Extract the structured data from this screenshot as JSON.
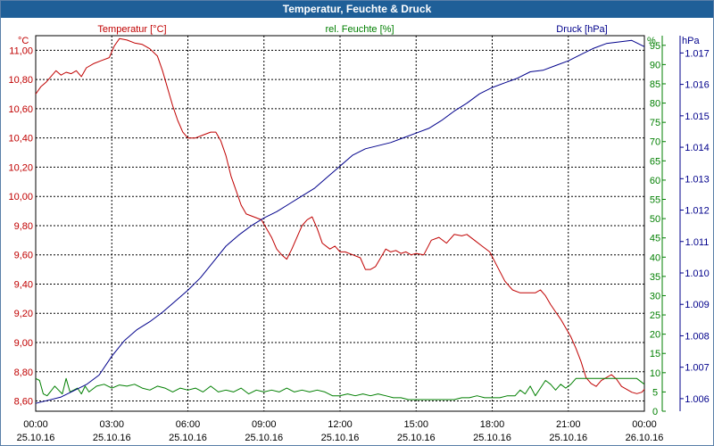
{
  "title": "Temperatur, Feuchte & Druck",
  "chart_data": {
    "type": "line",
    "title": "Temperatur, Feuchte & Druck",
    "x_range_hours": [
      0,
      24
    ],
    "x_ticks": [
      {
        "h": 0,
        "time": "00:00",
        "date": "25.10.16"
      },
      {
        "h": 3,
        "time": "03:00",
        "date": "25.10.16"
      },
      {
        "h": 6,
        "time": "06:00",
        "date": "25.10.16"
      },
      {
        "h": 9,
        "time": "09:00",
        "date": "25.10.16"
      },
      {
        "h": 12,
        "time": "12:00",
        "date": "25.10.16"
      },
      {
        "h": 15,
        "time": "15:00",
        "date": "25.10.16"
      },
      {
        "h": 18,
        "time": "18:00",
        "date": "25.10.16"
      },
      {
        "h": 21,
        "time": "21:00",
        "date": "25.10.16"
      },
      {
        "h": 24,
        "time": "00:00",
        "date": "26.10.16"
      }
    ],
    "axes": {
      "temperature": {
        "label": "Temperatur [°C]",
        "unit": "°C",
        "range": [
          8.53,
          11.1
        ],
        "ticks": [
          "8,60",
          "8,80",
          "9,00",
          "9,20",
          "9,40",
          "9,60",
          "9,80",
          "10,00",
          "10,20",
          "10,40",
          "10,60",
          "10,80",
          "11,00"
        ],
        "tick_values": [
          8.6,
          8.8,
          9.0,
          9.2,
          9.4,
          9.6,
          9.8,
          10.0,
          10.2,
          10.4,
          10.6,
          10.8,
          11.0
        ],
        "color": "#c00000"
      },
      "humidity": {
        "label": "rel. Feuchte [%]",
        "unit": "%",
        "range": [
          0,
          97.5
        ],
        "ticks": [
          "0",
          "5",
          "10",
          "15",
          "20",
          "25",
          "30",
          "35",
          "40",
          "45",
          "50",
          "55",
          "60",
          "65",
          "70",
          "75",
          "80",
          "85",
          "90",
          "95"
        ],
        "tick_values": [
          0,
          5,
          10,
          15,
          20,
          25,
          30,
          35,
          40,
          45,
          50,
          55,
          60,
          65,
          70,
          75,
          80,
          85,
          90,
          95
        ],
        "color": "#007f00"
      },
      "pressure": {
        "label": "Druck [hPa]",
        "unit": "hPa",
        "range": [
          1005.6,
          1017.55
        ],
        "ticks": [
          "1.006",
          "1.007",
          "1.008",
          "1.009",
          "1.010",
          "1.011",
          "1.012",
          "1.013",
          "1.014",
          "1.015",
          "1.016",
          "1.017"
        ],
        "tick_values": [
          1006,
          1007,
          1008,
          1009,
          1010,
          1011,
          1012,
          1013,
          1014,
          1015,
          1016,
          1017
        ],
        "color": "#00008b"
      }
    },
    "series": [
      {
        "name": "Temperatur [°C]",
        "axis": "temperature",
        "x": [
          0,
          0.2,
          0.4,
          0.6,
          0.8,
          1.0,
          1.2,
          1.4,
          1.6,
          1.8,
          2.0,
          2.3,
          2.6,
          2.9,
          3.1,
          3.3,
          3.6,
          3.9,
          4.2,
          4.5,
          4.8,
          5.0,
          5.2,
          5.4,
          5.6,
          5.8,
          6.0,
          6.3,
          6.6,
          6.9,
          7.1,
          7.3,
          7.5,
          7.7,
          7.9,
          8.1,
          8.3,
          8.6,
          8.9,
          9.1,
          9.3,
          9.5,
          9.7,
          9.9,
          10.1,
          10.3,
          10.5,
          10.7,
          10.9,
          11.1,
          11.3,
          11.6,
          11.8,
          12.0,
          12.2,
          12.5,
          12.8,
          13.0,
          13.2,
          13.4,
          13.6,
          13.8,
          14.0,
          14.2,
          14.4,
          14.6,
          14.8,
          15.0,
          15.3,
          15.6,
          15.9,
          16.2,
          16.5,
          16.8,
          17.0,
          17.3,
          17.6,
          17.9,
          18.2,
          18.5,
          18.8,
          19.1,
          19.4,
          19.7,
          19.9,
          20.1,
          20.3,
          20.5,
          20.7,
          20.9,
          21.1,
          21.3,
          21.5,
          21.7,
          21.9,
          22.1,
          22.3,
          22.5,
          22.7,
          22.9,
          23.1,
          23.3,
          23.5,
          23.7,
          23.9,
          24.0
        ],
        "y": [
          10.7,
          10.75,
          10.78,
          10.82,
          10.86,
          10.83,
          10.85,
          10.84,
          10.86,
          10.82,
          10.88,
          10.91,
          10.93,
          10.95,
          11.03,
          11.08,
          11.07,
          11.05,
          11.04,
          11.01,
          10.96,
          10.86,
          10.74,
          10.62,
          10.52,
          10.44,
          10.4,
          10.4,
          10.42,
          10.44,
          10.44,
          10.38,
          10.28,
          10.14,
          10.04,
          9.94,
          9.88,
          9.86,
          9.84,
          9.78,
          9.72,
          9.64,
          9.6,
          9.57,
          9.64,
          9.72,
          9.8,
          9.84,
          9.86,
          9.78,
          9.68,
          9.64,
          9.66,
          9.62,
          9.62,
          9.6,
          9.58,
          9.5,
          9.5,
          9.52,
          9.58,
          9.64,
          9.62,
          9.63,
          9.61,
          9.62,
          9.6,
          9.61,
          9.6,
          9.7,
          9.72,
          9.68,
          9.74,
          9.73,
          9.74,
          9.7,
          9.66,
          9.62,
          9.52,
          9.42,
          9.36,
          9.34,
          9.34,
          9.34,
          9.36,
          9.32,
          9.26,
          9.21,
          9.16,
          9.1,
          9.04,
          8.96,
          8.87,
          8.76,
          8.72,
          8.7,
          8.74,
          8.76,
          8.78,
          8.75,
          8.7,
          8.68,
          8.66,
          8.65,
          8.66,
          8.68
        ],
        "color": "#c00000"
      },
      {
        "name": "rel. Feuchte [%]",
        "axis": "humidity",
        "x": [
          0,
          0.15,
          0.3,
          0.45,
          0.6,
          0.75,
          0.9,
          1.05,
          1.2,
          1.35,
          1.5,
          1.65,
          1.8,
          1.95,
          2.1,
          2.4,
          2.7,
          3.0,
          3.3,
          3.6,
          3.9,
          4.2,
          4.5,
          4.8,
          5.1,
          5.4,
          5.7,
          6.0,
          6.3,
          6.6,
          6.9,
          7.2,
          7.5,
          7.8,
          8.1,
          8.4,
          8.7,
          9.0,
          9.3,
          9.6,
          9.9,
          10.2,
          10.5,
          10.8,
          11.1,
          11.4,
          11.7,
          12.0,
          12.3,
          12.6,
          12.9,
          13.2,
          13.5,
          13.8,
          14.1,
          14.4,
          14.7,
          15.0,
          15.3,
          15.6,
          15.9,
          16.2,
          16.5,
          16.8,
          17.1,
          17.4,
          17.7,
          18.0,
          18.3,
          18.6,
          18.9,
          19.1,
          19.3,
          19.5,
          19.7,
          19.9,
          20.1,
          20.3,
          20.5,
          20.7,
          20.9,
          21.1,
          21.3,
          21.6,
          21.9,
          22.2,
          22.5,
          22.8,
          23.1,
          23.4,
          23.7,
          24.0
        ],
        "y": [
          8.5,
          8.0,
          4.5,
          4.0,
          5.2,
          6.5,
          5.5,
          4.5,
          8.5,
          5.0,
          5.5,
          6.0,
          4.5,
          6.5,
          5.0,
          6.5,
          7.0,
          6.0,
          6.8,
          6.5,
          7.0,
          6.0,
          5.5,
          6.5,
          6.0,
          5.0,
          6.0,
          5.5,
          6.0,
          5.0,
          6.5,
          5.0,
          5.5,
          5.0,
          6.0,
          4.5,
          5.5,
          5.0,
          5.5,
          5.0,
          6.0,
          5.0,
          5.5,
          5.0,
          5.5,
          5.0,
          4.0,
          4.0,
          4.5,
          4.0,
          4.5,
          4.0,
          4.5,
          4.0,
          3.5,
          3.5,
          3.0,
          3.0,
          3.0,
          3.0,
          3.0,
          3.0,
          3.0,
          3.5,
          3.5,
          4.0,
          3.5,
          3.5,
          3.5,
          4.0,
          4.0,
          5.5,
          4.5,
          6.5,
          4.0,
          6.0,
          8.0,
          7.0,
          5.5,
          7.0,
          6.0,
          7.0,
          8.5,
          8.5,
          8.5,
          8.5,
          8.5,
          8.5,
          8.5,
          8.5,
          8.5,
          7.0
        ],
        "color": "#007f00"
      },
      {
        "name": "Druck [hPa]",
        "axis": "pressure",
        "x": [
          0,
          0.5,
          1.0,
          1.5,
          2.0,
          2.5,
          3.0,
          3.5,
          4.0,
          4.5,
          5.0,
          5.5,
          6.0,
          6.5,
          7.0,
          7.5,
          8.0,
          8.5,
          9.0,
          9.5,
          10.0,
          10.5,
          11.0,
          11.5,
          12.0,
          12.5,
          13.0,
          13.5,
          14.0,
          14.5,
          15.0,
          15.5,
          16.0,
          16.5,
          17.0,
          17.5,
          18.0,
          18.5,
          19.0,
          19.5,
          20.0,
          20.5,
          21.0,
          21.5,
          22.0,
          22.5,
          23.0,
          23.5,
          24.0
        ],
        "y": [
          1005.85,
          1005.95,
          1006.05,
          1006.25,
          1006.45,
          1006.75,
          1007.35,
          1007.85,
          1008.2,
          1008.45,
          1008.75,
          1009.1,
          1009.45,
          1009.85,
          1010.35,
          1010.85,
          1011.2,
          1011.5,
          1011.75,
          1011.95,
          1012.2,
          1012.45,
          1012.7,
          1013.05,
          1013.4,
          1013.75,
          1013.95,
          1014.05,
          1014.15,
          1014.3,
          1014.45,
          1014.6,
          1014.85,
          1015.15,
          1015.4,
          1015.7,
          1015.9,
          1016.05,
          1016.2,
          1016.4,
          1016.45,
          1016.6,
          1016.75,
          1016.95,
          1017.15,
          1017.3,
          1017.35,
          1017.4,
          1017.2
        ],
        "color": "#00008b"
      }
    ]
  }
}
